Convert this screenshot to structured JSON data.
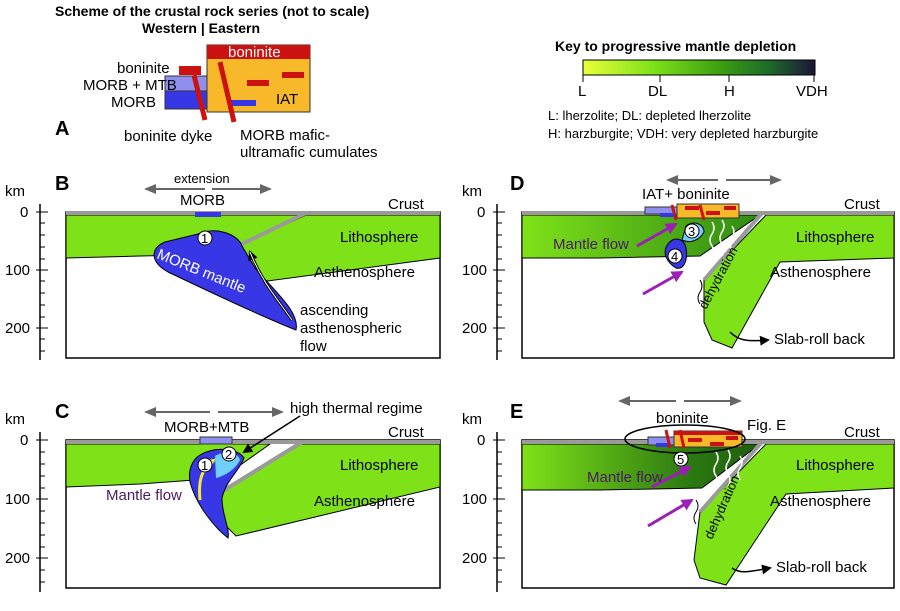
{
  "colors": {
    "lithosphere": "#7fe219",
    "mantle_wedge": "#3a9d0f",
    "morb_mantle": "#3737e6",
    "morb_light": "#8f8ff0",
    "iat_orange": "#f7b82a",
    "boninite_red": "#cc1111",
    "hot_zone": "#6fd0ff",
    "flow_arrow": "#9b1fb5",
    "crust_grey": "#9a9a9a",
    "key_L": "#e9ff3a",
    "key_DL": "#7fe219",
    "key_H": "#1e7b20",
    "key_VDH": "#1b1438"
  },
  "panelA": {
    "letter": "A",
    "title_line1": "Scheme of the crustal rock series (not to scale)",
    "title_line2": "Western | Eastern",
    "boninite_left": "boninite",
    "morb_mtb": "MORB + MTB",
    "morb": "MORB",
    "boninite_right": "boninite",
    "iat": "IAT",
    "boninite_dyke": "boninite dyke",
    "cumulates_line1": "MORB mafic-",
    "cumulates_line2": "ultramafic cumulates"
  },
  "key": {
    "title": "Key to progressive mantle depletion",
    "ticks": [
      "L",
      "DL",
      "H",
      "VDH"
    ],
    "legend_line1": "L: lherzolite; DL: depleted lherzolite",
    "legend_line2": "H: harzburgite; VDH: very depleted harzburgite"
  },
  "axis": {
    "unit": "km",
    "ticks": [
      "0",
      "100",
      "200"
    ]
  },
  "panelB": {
    "letter": "B",
    "extension": "extension",
    "morb": "MORB",
    "crust": "Crust",
    "lithosphere": "Lithosphere",
    "asthenosphere": "Asthenosphere",
    "morb_mantle": "MORB mantle",
    "ascending_line1": "ascending",
    "ascending_line2": "asthenospheric",
    "ascending_line3": "flow",
    "marker": "1"
  },
  "panelC": {
    "letter": "C",
    "morb_mtb": "MORB+MTB",
    "high_thermal": "high thermal regime",
    "crust": "Crust",
    "lithosphere": "Lithosphere",
    "asthenosphere": "Asthenosphere",
    "mantle_flow": "Mantle flow",
    "marker1": "1",
    "marker2": "2"
  },
  "panelD": {
    "letter": "D",
    "iat_boninite": "IAT+ boninite",
    "crust": "Crust",
    "lithosphere": "Lithosphere",
    "asthenosphere": "Asthenosphere",
    "mantle_flow": "Mantle flow",
    "dehydration": "dehydration",
    "slab_rollback": "Slab-roll back",
    "marker3": "3",
    "marker4": "4"
  },
  "panelE": {
    "letter": "E",
    "boninite": "boninite",
    "fig_e": "Fig. E",
    "crust": "Crust",
    "lithosphere": "Lithosphere",
    "asthenosphere": "Asthenosphere",
    "mantle_flow": "Mantle flow",
    "dehydration": "dehydration",
    "slab_rollback": "Slab-roll back",
    "marker5": "5"
  }
}
